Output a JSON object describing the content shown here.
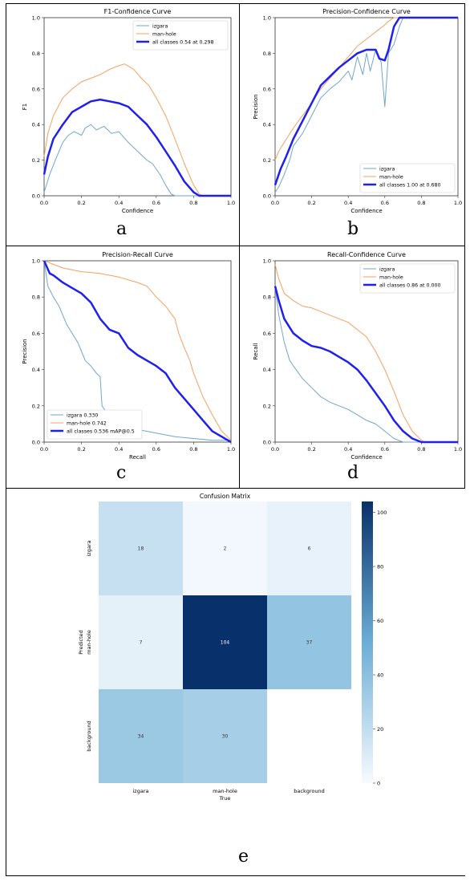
{
  "labels": {
    "a": "a",
    "b": "b",
    "c": "c",
    "d": "d",
    "e": "e"
  },
  "chart_data": [
    {
      "id": "a",
      "type": "line",
      "title": "F1-Confidence Curve",
      "xlabel": "Confidence",
      "ylabel": "F1",
      "xlim": [
        0,
        1
      ],
      "ylim": [
        0,
        1
      ],
      "xticks": [
        "0.0",
        "0.2",
        "0.4",
        "0.6",
        "0.8",
        "1.0"
      ],
      "yticks": [
        "0.0",
        "0.2",
        "0.4",
        "0.6",
        "0.8",
        "1.0"
      ],
      "legend_position": "top-right",
      "series": [
        {
          "name": "izgara",
          "color": "#6fa6cf",
          "width": 1,
          "x": [
            0,
            0.03,
            0.06,
            0.1,
            0.13,
            0.16,
            0.2,
            0.22,
            0.25,
            0.28,
            0.32,
            0.36,
            0.4,
            0.45,
            0.5,
            0.55,
            0.58,
            0.62,
            0.65,
            0.68,
            0.7,
            1.0
          ],
          "y": [
            0.02,
            0.12,
            0.2,
            0.3,
            0.34,
            0.36,
            0.34,
            0.38,
            0.4,
            0.37,
            0.39,
            0.35,
            0.36,
            0.3,
            0.25,
            0.2,
            0.18,
            0.12,
            0.06,
            0.01,
            0,
            0
          ]
        },
        {
          "name": "man-hole",
          "color": "#f5a060",
          "width": 1,
          "x": [
            0,
            0.02,
            0.05,
            0.1,
            0.15,
            0.2,
            0.25,
            0.3,
            0.35,
            0.4,
            0.43,
            0.48,
            0.52,
            0.56,
            0.6,
            0.65,
            0.7,
            0.75,
            0.8,
            0.83,
            0.85,
            1.0
          ],
          "y": [
            0.22,
            0.35,
            0.45,
            0.55,
            0.6,
            0.64,
            0.66,
            0.68,
            0.71,
            0.73,
            0.74,
            0.71,
            0.66,
            0.62,
            0.55,
            0.45,
            0.32,
            0.18,
            0.06,
            0.01,
            0,
            0
          ]
        },
        {
          "name": "all classes 0.54 at 0.298",
          "color": "#1f1ff0",
          "width": 2.5,
          "x": [
            0,
            0.02,
            0.05,
            0.1,
            0.15,
            0.2,
            0.25,
            0.3,
            0.35,
            0.4,
            0.45,
            0.5,
            0.55,
            0.6,
            0.65,
            0.7,
            0.75,
            0.8,
            0.83,
            0.85,
            1.0
          ],
          "y": [
            0.12,
            0.22,
            0.32,
            0.4,
            0.47,
            0.5,
            0.53,
            0.54,
            0.53,
            0.52,
            0.5,
            0.45,
            0.4,
            0.33,
            0.25,
            0.17,
            0.08,
            0.02,
            0,
            0,
            0
          ]
        }
      ]
    },
    {
      "id": "b",
      "type": "line",
      "title": "Precision-Confidence Curve",
      "xlabel": "Confidence",
      "ylabel": "Precision",
      "xlim": [
        0,
        1
      ],
      "ylim": [
        0,
        1
      ],
      "xticks": [
        "0.0",
        "0.2",
        "0.4",
        "0.6",
        "0.8",
        "1.0"
      ],
      "yticks": [
        "0.0",
        "0.2",
        "0.4",
        "0.6",
        "0.8",
        "1.0"
      ],
      "legend_position": "bottom-right",
      "series": [
        {
          "name": "izgara",
          "color": "#6fa6cf",
          "width": 1,
          "x": [
            0,
            0.02,
            0.05,
            0.08,
            0.1,
            0.15,
            0.2,
            0.25,
            0.3,
            0.35,
            0.4,
            0.42,
            0.45,
            0.48,
            0.5,
            0.52,
            0.55,
            0.58,
            0.6,
            0.62,
            0.65,
            0.68,
            0.7,
            1.0
          ],
          "y": [
            0.02,
            0.05,
            0.12,
            0.2,
            0.28,
            0.35,
            0.45,
            0.55,
            0.6,
            0.64,
            0.7,
            0.65,
            0.78,
            0.68,
            0.8,
            0.7,
            0.82,
            0.75,
            0.5,
            0.8,
            0.85,
            0.95,
            1.0,
            1.0
          ]
        },
        {
          "name": "man-hole",
          "color": "#f5a060",
          "width": 1,
          "x": [
            0,
            0.02,
            0.05,
            0.1,
            0.15,
            0.2,
            0.25,
            0.3,
            0.35,
            0.4,
            0.45,
            0.5,
            0.55,
            0.6,
            0.62,
            0.65,
            0.68,
            1.0
          ],
          "y": [
            0.2,
            0.25,
            0.3,
            0.38,
            0.45,
            0.52,
            0.6,
            0.66,
            0.72,
            0.78,
            0.84,
            0.88,
            0.92,
            0.96,
            0.98,
            1.0,
            1.0,
            1.0
          ]
        },
        {
          "name": "all classes 1.00 at 0.680",
          "color": "#1f1ff0",
          "width": 2.5,
          "x": [
            0,
            0.03,
            0.06,
            0.1,
            0.15,
            0.2,
            0.25,
            0.3,
            0.35,
            0.4,
            0.45,
            0.5,
            0.55,
            0.57,
            0.6,
            0.62,
            0.65,
            0.68,
            1.0
          ],
          "y": [
            0.06,
            0.15,
            0.22,
            0.32,
            0.42,
            0.52,
            0.62,
            0.67,
            0.72,
            0.76,
            0.8,
            0.82,
            0.82,
            0.77,
            0.76,
            0.82,
            0.95,
            1.0,
            1.0
          ]
        }
      ]
    },
    {
      "id": "c",
      "type": "line",
      "title": "Precision-Recall Curve",
      "xlabel": "Recall",
      "ylabel": "Precision",
      "xlim": [
        0,
        1
      ],
      "ylim": [
        0,
        1
      ],
      "xticks": [
        "0.0",
        "0.2",
        "0.4",
        "0.6",
        "0.8",
        "1.0"
      ],
      "yticks": [
        "0.0",
        "0.2",
        "0.4",
        "0.6",
        "0.8",
        "1.0"
      ],
      "legend_position": "bottom-left",
      "series": [
        {
          "name": "izgara 0.330",
          "color": "#6fa6cf",
          "width": 1,
          "x": [
            0,
            0.02,
            0.05,
            0.08,
            0.1,
            0.12,
            0.15,
            0.18,
            0.2,
            0.22,
            0.25,
            0.28,
            0.3,
            0.31,
            0.33,
            0.35,
            0.38,
            0.4,
            0.45,
            0.5,
            0.6,
            0.7,
            0.8,
            0.9,
            1.0
          ],
          "y": [
            1.0,
            0.86,
            0.8,
            0.75,
            0.7,
            0.65,
            0.6,
            0.55,
            0.5,
            0.45,
            0.42,
            0.38,
            0.36,
            0.2,
            0.17,
            0.15,
            0.13,
            0.1,
            0.09,
            0.07,
            0.05,
            0.03,
            0.02,
            0.01,
            0.01
          ]
        },
        {
          "name": "man-hole 0.742",
          "color": "#f5a060",
          "width": 1,
          "x": [
            0,
            0.1,
            0.2,
            0.3,
            0.4,
            0.5,
            0.55,
            0.6,
            0.65,
            0.7,
            0.72,
            0.75,
            0.78,
            0.8,
            0.85,
            0.9,
            0.95,
            1.0
          ],
          "y": [
            1.0,
            0.96,
            0.94,
            0.93,
            0.91,
            0.88,
            0.86,
            0.8,
            0.75,
            0.68,
            0.6,
            0.52,
            0.45,
            0.38,
            0.25,
            0.15,
            0.06,
            0.01
          ]
        },
        {
          "name": "all classes 0.536 mAP@0.5",
          "color": "#1f1ff0",
          "width": 2.5,
          "x": [
            0,
            0.03,
            0.05,
            0.1,
            0.15,
            0.2,
            0.25,
            0.3,
            0.35,
            0.4,
            0.45,
            0.5,
            0.55,
            0.6,
            0.65,
            0.7,
            0.75,
            0.8,
            0.85,
            0.9,
            0.95,
            1.0
          ],
          "y": [
            1.0,
            0.93,
            0.92,
            0.88,
            0.85,
            0.82,
            0.77,
            0.68,
            0.62,
            0.6,
            0.52,
            0.48,
            0.45,
            0.42,
            0.38,
            0.3,
            0.24,
            0.18,
            0.12,
            0.06,
            0.03,
            0.0
          ]
        }
      ]
    },
    {
      "id": "d",
      "type": "line",
      "title": "Recall-Confidence Curve",
      "xlabel": "Confidence",
      "ylabel": "Recall",
      "xlim": [
        0,
        1
      ],
      "ylim": [
        0,
        1
      ],
      "xticks": [
        "0.0",
        "0.2",
        "0.4",
        "0.6",
        "0.8",
        "1.0"
      ],
      "yticks": [
        "0.0",
        "0.2",
        "0.4",
        "0.6",
        "0.8",
        "1.0"
      ],
      "legend_position": "top-right",
      "series": [
        {
          "name": "izgara",
          "color": "#6fa6cf",
          "width": 1,
          "x": [
            0,
            0.02,
            0.05,
            0.08,
            0.1,
            0.15,
            0.2,
            0.25,
            0.3,
            0.35,
            0.4,
            0.45,
            0.5,
            0.55,
            0.6,
            0.65,
            0.7,
            1.0
          ],
          "y": [
            0.86,
            0.7,
            0.55,
            0.45,
            0.42,
            0.35,
            0.3,
            0.25,
            0.22,
            0.2,
            0.18,
            0.15,
            0.12,
            0.1,
            0.06,
            0.02,
            0.0,
            0.0
          ]
        },
        {
          "name": "man-hole",
          "color": "#f5a060",
          "width": 1,
          "x": [
            0,
            0.02,
            0.05,
            0.1,
            0.15,
            0.2,
            0.25,
            0.3,
            0.35,
            0.4,
            0.45,
            0.5,
            0.55,
            0.6,
            0.65,
            0.7,
            0.75,
            0.8,
            0.82,
            1.0
          ],
          "y": [
            0.98,
            0.9,
            0.82,
            0.78,
            0.75,
            0.74,
            0.72,
            0.7,
            0.68,
            0.66,
            0.62,
            0.58,
            0.5,
            0.4,
            0.28,
            0.15,
            0.06,
            0.01,
            0.0,
            0.0
          ]
        },
        {
          "name": "all classes 0.86 at 0.000",
          "color": "#1f1ff0",
          "width": 2.5,
          "x": [
            0,
            0.02,
            0.05,
            0.1,
            0.15,
            0.2,
            0.25,
            0.3,
            0.35,
            0.4,
            0.45,
            0.5,
            0.55,
            0.6,
            0.65,
            0.7,
            0.75,
            0.8,
            1.0
          ],
          "y": [
            0.86,
            0.78,
            0.68,
            0.6,
            0.56,
            0.53,
            0.52,
            0.5,
            0.47,
            0.44,
            0.4,
            0.34,
            0.27,
            0.2,
            0.12,
            0.06,
            0.02,
            0.0,
            0.0
          ]
        }
      ]
    },
    {
      "id": "e",
      "type": "heatmap",
      "title": "Confusion Matrix",
      "xlabel": "True",
      "ylabel": "Predicted",
      "categories_x": [
        "izgara",
        "man-hole",
        "background"
      ],
      "categories_y": [
        "izgara",
        "man-hole",
        "background"
      ],
      "values": [
        [
          18,
          2,
          6
        ],
        [
          7,
          104,
          37
        ],
        [
          34,
          30,
          null
        ]
      ],
      "colorbar": {
        "min": 0,
        "max": 104,
        "ticks": [
          "0",
          "20",
          "40",
          "60",
          "80",
          "100"
        ],
        "tick_values": [
          0,
          20,
          40,
          60,
          80,
          100
        ]
      },
      "colors": {
        "low": "#f7fbff",
        "mid": "#6baed6",
        "high": "#08306b"
      }
    }
  ]
}
